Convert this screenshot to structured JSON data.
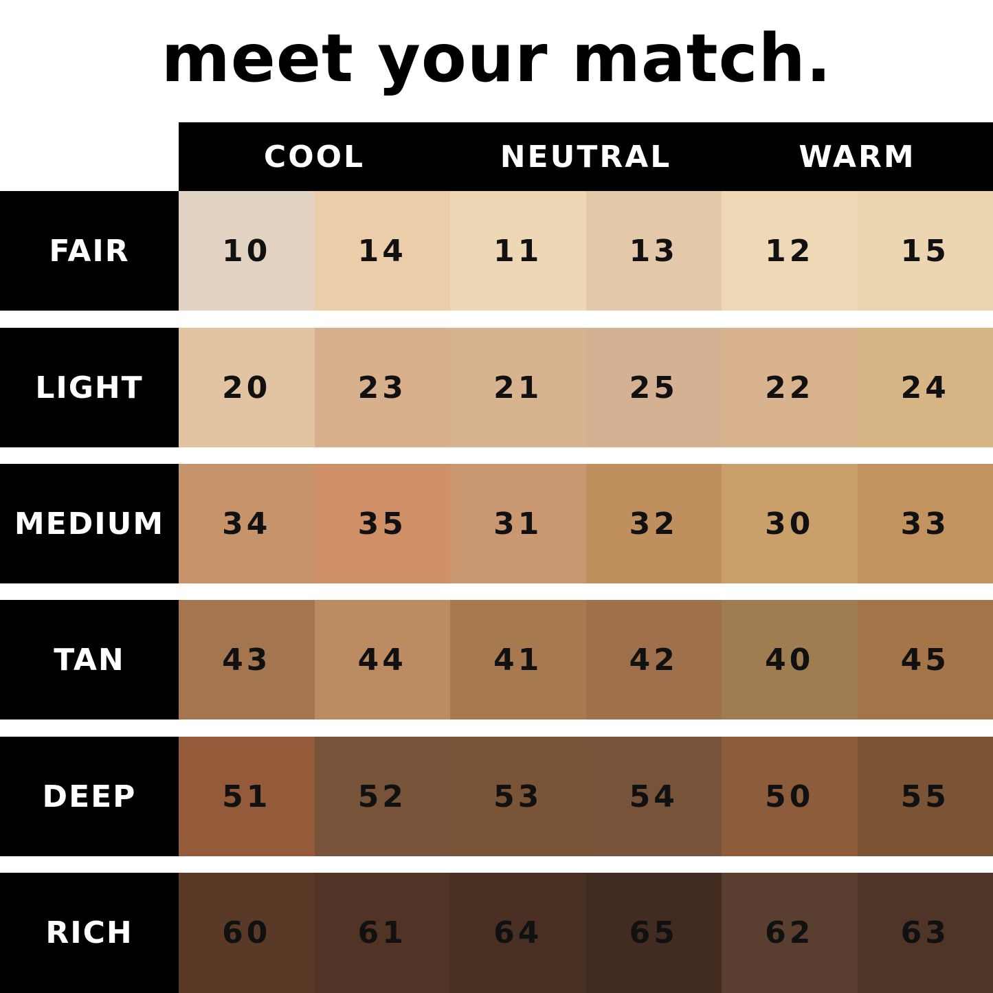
{
  "title": "meet your match.",
  "columns": [
    "COOL",
    "NEUTRAL",
    "WARM"
  ],
  "rows": [
    {
      "label": "FAIR",
      "shades": [
        {
          "number": "10",
          "color": "#e3d3c2"
        },
        {
          "number": "14",
          "color": "#ebcdaa"
        },
        {
          "number": "11",
          "color": "#eed7b5"
        },
        {
          "number": "13",
          "color": "#e3c9a9"
        },
        {
          "number": "12",
          "color": "#efd8b5"
        },
        {
          "number": "15",
          "color": "#ebd6b1"
        }
      ]
    },
    {
      "label": "LIGHT",
      "shades": [
        {
          "number": "20",
          "color": "#e2c3a2"
        },
        {
          "number": "23",
          "color": "#d9b08c"
        },
        {
          "number": "21",
          "color": "#d8b38f"
        },
        {
          "number": "25",
          "color": "#d4b193"
        },
        {
          "number": "22",
          "color": "#d9b38e"
        },
        {
          "number": "24",
          "color": "#d7b585"
        }
      ]
    },
    {
      "label": "MEDIUM",
      "shades": [
        {
          "number": "34",
          "color": "#c7936b"
        },
        {
          "number": "35",
          "color": "#cf9068"
        },
        {
          "number": "31",
          "color": "#c99870"
        },
        {
          "number": "32",
          "color": "#c08f5e"
        },
        {
          "number": "30",
          "color": "#c9a06a"
        },
        {
          "number": "33",
          "color": "#c2935f"
        }
      ]
    },
    {
      "label": "TAN",
      "shades": [
        {
          "number": "43",
          "color": "#a37650"
        },
        {
          "number": "44",
          "color": "#bc8b62"
        },
        {
          "number": "41",
          "color": "#a67a4e"
        },
        {
          "number": "42",
          "color": "#a0704c"
        },
        {
          "number": "40",
          "color": "#a07d51"
        },
        {
          "number": "45",
          "color": "#a57449"
        }
      ]
    },
    {
      "label": "DEEP",
      "shades": [
        {
          "number": "51",
          "color": "#945b3a"
        },
        {
          "number": "52",
          "color": "#77533a"
        },
        {
          "number": "53",
          "color": "#7a5436"
        },
        {
          "number": "54",
          "color": "#765339"
        },
        {
          "number": "50",
          "color": "#8d5c3b"
        },
        {
          "number": "55",
          "color": "#7b5335"
        }
      ]
    },
    {
      "label": "RICH",
      "shades": [
        {
          "number": "60",
          "color": "#5a3a27"
        },
        {
          "number": "61",
          "color": "#513425"
        },
        {
          "number": "64",
          "color": "#4a3022"
        },
        {
          "number": "65",
          "color": "#422c21"
        },
        {
          "number": "62",
          "color": "#5a3e2f"
        },
        {
          "number": "63",
          "color": "#4f3527"
        }
      ]
    }
  ]
}
